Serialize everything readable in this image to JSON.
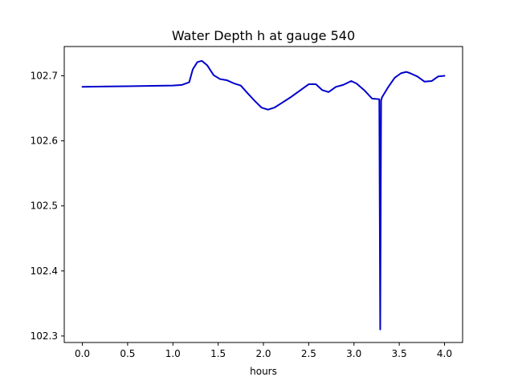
{
  "chart_data": {
    "type": "line",
    "title": "Water Depth h at gauge 540",
    "xlabel": "hours",
    "ylabel": "",
    "xlim": [
      -0.2,
      4.2
    ],
    "ylim": [
      102.29,
      102.745
    ],
    "xticks": [
      0.0,
      0.5,
      1.0,
      1.5,
      2.0,
      2.5,
      3.0,
      3.5,
      4.0
    ],
    "xtick_labels": [
      "0.0",
      "0.5",
      "1.0",
      "1.5",
      "2.0",
      "2.5",
      "3.0",
      "3.5",
      "4.0"
    ],
    "yticks": [
      102.3,
      102.4,
      102.5,
      102.6,
      102.7
    ],
    "ytick_labels": [
      "102.3",
      "102.4",
      "102.5",
      "102.6",
      "102.7"
    ],
    "grid": false,
    "series": [
      {
        "color": "#0000cc",
        "x": [
          0.0,
          0.5,
          1.0,
          1.1,
          1.18,
          1.22,
          1.27,
          1.32,
          1.38,
          1.45,
          1.52,
          1.6,
          1.68,
          1.75,
          1.82,
          1.9,
          1.98,
          2.05,
          2.12,
          2.2,
          2.3,
          2.4,
          2.5,
          2.58,
          2.65,
          2.72,
          2.8,
          2.88,
          2.97,
          3.03,
          3.12,
          3.2,
          3.28,
          3.29,
          3.3,
          3.31,
          3.38,
          3.45,
          3.52,
          3.58,
          3.62,
          3.7,
          3.78,
          3.86,
          3.93,
          4.0
        ],
        "y": [
          102.683,
          102.684,
          102.685,
          102.686,
          102.69,
          102.71,
          102.721,
          102.723,
          102.716,
          102.701,
          102.695,
          102.693,
          102.688,
          102.685,
          102.674,
          102.662,
          102.651,
          102.648,
          102.651,
          102.658,
          102.667,
          102.677,
          102.687,
          102.687,
          102.678,
          102.675,
          102.683,
          102.686,
          102.692,
          102.688,
          102.677,
          102.665,
          102.664,
          102.31,
          102.662,
          102.667,
          102.683,
          102.697,
          102.704,
          102.706,
          102.704,
          102.699,
          102.691,
          102.692,
          102.699,
          102.7
        ]
      }
    ]
  }
}
